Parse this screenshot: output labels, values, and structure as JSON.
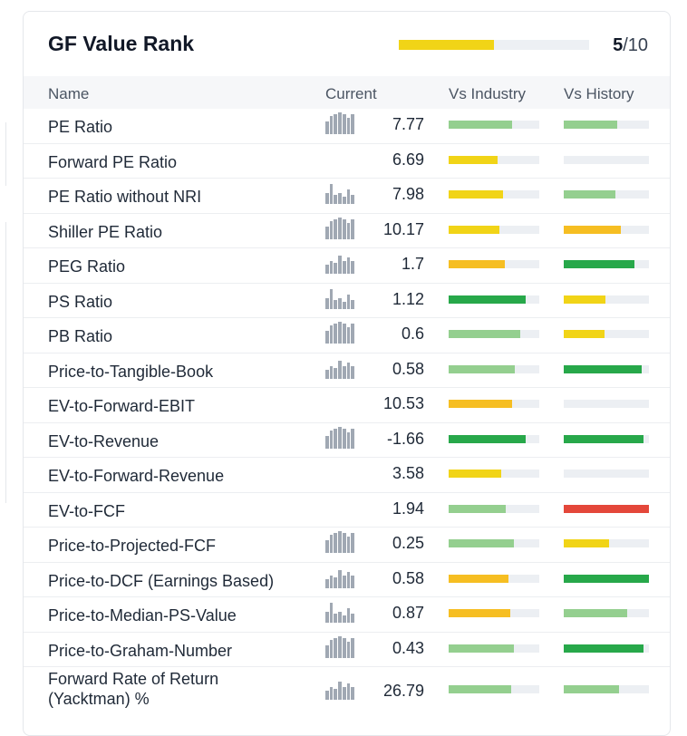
{
  "header": {
    "title": "GF Value Rank",
    "rank_value": "5",
    "rank_max": "/10",
    "rank_fraction": 0.5
  },
  "columns": {
    "name": "Name",
    "current": "Current",
    "vs_industry": "Vs Industry",
    "vs_history": "Vs History"
  },
  "colors": {
    "light_green": "#94cf8f",
    "green": "#27a84a",
    "yellow": "#f1d417",
    "orange": "#f6be22",
    "red": "#e4473a",
    "track": "#eceff3"
  },
  "rows": [
    {
      "name": "PE Ratio",
      "value": "7.77",
      "has_chart": true,
      "industry": {
        "pct": 0.7,
        "color": "#94cf8f"
      },
      "history": {
        "pct": 0.63,
        "color": "#94cf8f"
      }
    },
    {
      "name": "Forward PE Ratio",
      "value": "6.69",
      "has_chart": false,
      "industry": {
        "pct": 0.54,
        "color": "#f1d417"
      },
      "history": {
        "pct": 0.0,
        "color": "#eceff3"
      }
    },
    {
      "name": "PE Ratio without NRI",
      "value": "7.98",
      "has_chart": true,
      "industry": {
        "pct": 0.6,
        "color": "#f1d417"
      },
      "history": {
        "pct": 0.61,
        "color": "#94cf8f"
      }
    },
    {
      "name": "Shiller PE Ratio",
      "value": "10.17",
      "has_chart": true,
      "industry": {
        "pct": 0.56,
        "color": "#f1d417"
      },
      "history": {
        "pct": 0.67,
        "color": "#f6be22"
      }
    },
    {
      "name": "PEG Ratio",
      "value": "1.7",
      "has_chart": true,
      "industry": {
        "pct": 0.62,
        "color": "#f6be22"
      },
      "history": {
        "pct": 0.83,
        "color": "#27a84a"
      }
    },
    {
      "name": "PS Ratio",
      "value": "1.12",
      "has_chart": true,
      "industry": {
        "pct": 0.85,
        "color": "#27a84a"
      },
      "history": {
        "pct": 0.49,
        "color": "#f1d417"
      }
    },
    {
      "name": "PB Ratio",
      "value": "0.6",
      "has_chart": true,
      "industry": {
        "pct": 0.79,
        "color": "#94cf8f"
      },
      "history": {
        "pct": 0.48,
        "color": "#f1d417"
      }
    },
    {
      "name": "Price-to-Tangible-Book",
      "value": "0.58",
      "has_chart": true,
      "industry": {
        "pct": 0.73,
        "color": "#94cf8f"
      },
      "history": {
        "pct": 0.91,
        "color": "#27a84a"
      }
    },
    {
      "name": "EV-to-Forward-EBIT",
      "value": "10.53",
      "has_chart": false,
      "industry": {
        "pct": 0.7,
        "color": "#f6be22"
      },
      "history": {
        "pct": 0.0,
        "color": "#eceff3"
      }
    },
    {
      "name": "EV-to-Revenue",
      "value": "-1.66",
      "has_chart": true,
      "industry": {
        "pct": 0.85,
        "color": "#27a84a"
      },
      "history": {
        "pct": 0.94,
        "color": "#27a84a"
      }
    },
    {
      "name": "EV-to-Forward-Revenue",
      "value": "3.58",
      "has_chart": false,
      "industry": {
        "pct": 0.58,
        "color": "#f1d417"
      },
      "history": {
        "pct": 0.0,
        "color": "#eceff3"
      }
    },
    {
      "name": "EV-to-FCF",
      "value": "1.94",
      "has_chart": false,
      "industry": {
        "pct": 0.63,
        "color": "#94cf8f"
      },
      "history": {
        "pct": 1.0,
        "color": "#e4473a"
      }
    },
    {
      "name": "Price-to-Projected-FCF",
      "value": "0.25",
      "has_chart": true,
      "industry": {
        "pct": 0.72,
        "color": "#94cf8f"
      },
      "history": {
        "pct": 0.53,
        "color": "#f1d417"
      }
    },
    {
      "name": "Price-to-DCF (Earnings Based)",
      "value": "0.58",
      "has_chart": true,
      "industry": {
        "pct": 0.66,
        "color": "#f6be22"
      },
      "history": {
        "pct": 1.0,
        "color": "#27a84a"
      }
    },
    {
      "name": "Price-to-Median-PS-Value",
      "value": "0.87",
      "has_chart": true,
      "industry": {
        "pct": 0.68,
        "color": "#f6be22"
      },
      "history": {
        "pct": 0.74,
        "color": "#94cf8f"
      }
    },
    {
      "name": "Price-to-Graham-Number",
      "value": "0.43",
      "has_chart": true,
      "industry": {
        "pct": 0.72,
        "color": "#94cf8f"
      },
      "history": {
        "pct": 0.94,
        "color": "#27a84a"
      }
    },
    {
      "name": "Forward Rate of Return (Yacktman) %",
      "value": "26.79",
      "has_chart": true,
      "industry": {
        "pct": 0.69,
        "color": "#94cf8f"
      },
      "history": {
        "pct": 0.65,
        "color": "#94cf8f"
      }
    }
  ]
}
